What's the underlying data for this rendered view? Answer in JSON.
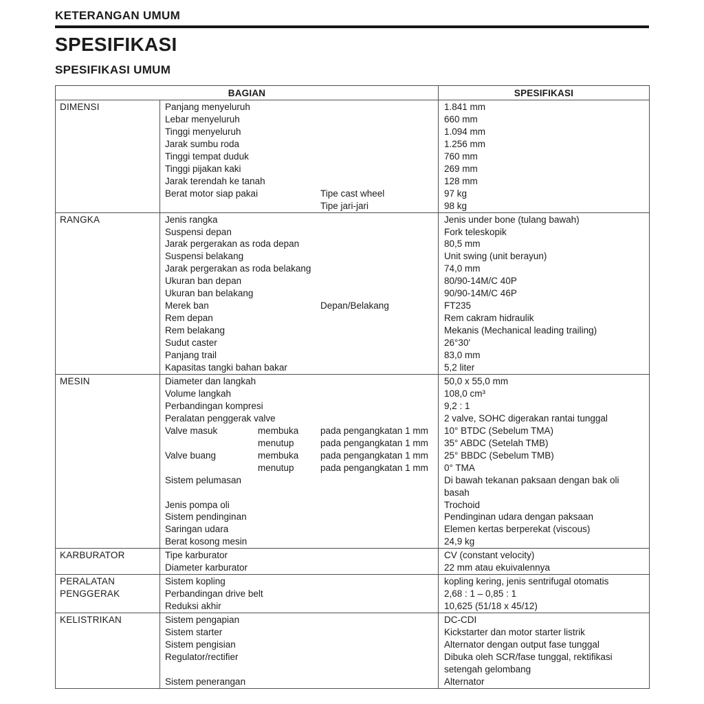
{
  "page": {
    "heading1": "KETERANGAN UMUM",
    "heading2": "SPESIFIKASI",
    "heading3": "SPESIFIKASI UMUM"
  },
  "table": {
    "headers": {
      "bagian": "BAGIAN",
      "spesifikasi": "SPESIFIKASI"
    },
    "sections": [
      {
        "name": "DIMENSI",
        "rows": [
          {
            "label": "Panjang menyeluruh",
            "value": "1.841 mm"
          },
          {
            "label": "Lebar menyeluruh",
            "value": "660 mm"
          },
          {
            "label": "Tinggi menyeluruh",
            "value": "1.094 mm"
          },
          {
            "label": "Jarak sumbu roda",
            "value": "1.256 mm"
          },
          {
            "label": "Tinggi tempat duduk",
            "value": "760 mm"
          },
          {
            "label": "Tinggi pijakan kaki",
            "value": "269 mm"
          },
          {
            "label": "Jarak terendah ke tanah",
            "value": "128 mm"
          },
          {
            "label": "Berat motor siap pakai",
            "sub2": "Tipe cast wheel",
            "value": "97 kg"
          },
          {
            "label": "",
            "sub2": "Tipe jari-jari",
            "value": "98 kg"
          }
        ]
      },
      {
        "name": "RANGKA",
        "rows": [
          {
            "label": "Jenis rangka",
            "value": "Jenis under bone (tulang bawah)"
          },
          {
            "label": "Suspensi depan",
            "value": "Fork teleskopik"
          },
          {
            "label": "Jarak pergerakan as roda depan",
            "value": "80,5 mm"
          },
          {
            "label": "Suspensi belakang",
            "value": "Unit swing (unit berayun)"
          },
          {
            "label": "Jarak pergerakan as roda belakang",
            "value": "74,0 mm"
          },
          {
            "label": "Ukuran ban depan",
            "value": "80/90-14M/C 40P"
          },
          {
            "label": "Ukuran ban belakang",
            "value": "90/90-14M/C 46P"
          },
          {
            "label": "Merek ban",
            "sub2": "Depan/Belakang",
            "value": "FT235"
          },
          {
            "label": "Rem depan",
            "value": "Rem cakram hidraulik"
          },
          {
            "label": "Rem belakang",
            "value": "Mekanis (Mechanical leading trailing)"
          },
          {
            "label": "Sudut caster",
            "value": "26°30'"
          },
          {
            "label": "Panjang trail",
            "value": "83,0 mm"
          },
          {
            "label": "Kapasitas tangki bahan bakar",
            "value": "5,2 liter"
          }
        ]
      },
      {
        "name": "MESIN",
        "rows": [
          {
            "label": "Diameter dan langkah",
            "value": "50,0 x 55,0 mm"
          },
          {
            "label": "Volume langkah",
            "value": "108,0 cm³"
          },
          {
            "label": "Perbandingan kompresi",
            "value": "9,2 : 1"
          },
          {
            "label": "Peralatan penggerak valve",
            "value": "2 valve, SOHC digerakan rantai tunggal"
          },
          {
            "label": "Valve masuk",
            "sub1": "membuka",
            "sub2": "pada pengangkatan 1 mm",
            "value": "10° BTDC (Sebelum TMA)"
          },
          {
            "label": "",
            "sub1": "menutup",
            "sub2": "pada pengangkatan 1 mm",
            "value": "35° ABDC (Setelah TMB)"
          },
          {
            "label": "Valve buang",
            "sub1": "membuka",
            "sub2": "pada pengangkatan 1 mm",
            "value": "25° BBDC (Sebelum TMB)"
          },
          {
            "label": "",
            "sub1": "menutup",
            "sub2": "pada pengangkatan 1 mm",
            "value": "0° TMA"
          },
          {
            "label": "Sistem pelumasan",
            "value": "Di bawah tekanan paksaan dengan bak oli",
            "value2": "basah"
          },
          {
            "label": "Jenis pompa oli",
            "value": "Trochoid"
          },
          {
            "label": "Sistem pendinginan",
            "value": "Pendinginan udara dengan paksaan"
          },
          {
            "label": "Saringan udara",
            "value": "Elemen kertas berperekat (viscous)"
          },
          {
            "label": "Berat kosong mesin",
            "value": "24,9 kg"
          }
        ]
      },
      {
        "name": "KARBURATOR",
        "rows": [
          {
            "label": "Tipe karburator",
            "value": "CV (constant velocity)"
          },
          {
            "label": "Diameter karburator",
            "value": "22 mm atau ekuivalennya"
          }
        ]
      },
      {
        "name": "PERALATAN PENGGERAK",
        "rows": [
          {
            "label": "Sistem kopling",
            "value": "kopling kering, jenis sentrifugal otomatis"
          },
          {
            "label": "Perbandingan drive belt",
            "value": "2,68 : 1 – 0,85 : 1"
          },
          {
            "label": "Reduksi akhir",
            "value": "10,625 (51/18 x 45/12)"
          }
        ]
      },
      {
        "name": "KELISTRIKAN",
        "rows": [
          {
            "label": "Sistem pengapian",
            "value": "DC-CDI"
          },
          {
            "label": "Sistem starter",
            "value": "Kickstarter dan motor starter listrik"
          },
          {
            "label": "Sistem pengisian",
            "value": "Alternator dengan output fase tunggal"
          },
          {
            "label": "Regulator/rectifier",
            "value": "Dibuka oleh SCR/fase tunggal, rektifikasi",
            "value2": "setengah gelombang"
          },
          {
            "label": "Sistem penerangan",
            "value": "Alternator"
          }
        ]
      }
    ]
  }
}
